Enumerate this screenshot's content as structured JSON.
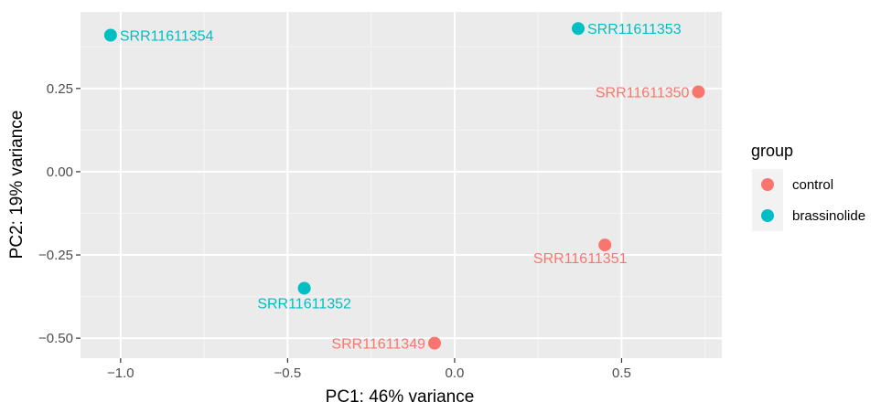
{
  "chart_data": {
    "type": "scatter",
    "title": "",
    "xlabel": "PC1: 46% variance",
    "ylabel": "PC2: 19% variance",
    "xlim": [
      -1.12,
      0.8
    ],
    "ylim": [
      -0.56,
      0.48
    ],
    "x_ticks": [
      -1.0,
      -0.5,
      0.0,
      0.5
    ],
    "x_tick_labels": [
      "−1.0",
      "−0.5",
      "0.0",
      "0.5"
    ],
    "y_ticks": [
      -0.5,
      -0.25,
      0.0,
      0.25
    ],
    "y_tick_labels": [
      "−0.50",
      "−0.25",
      "0.00",
      "0.25"
    ],
    "grid": true,
    "legend": {
      "title": "group",
      "placement": "right",
      "entries": [
        {
          "name": "control",
          "color": "#F8766D"
        },
        {
          "name": "brassinolide",
          "color": "#00BFC4"
        }
      ]
    },
    "points": [
      {
        "label": "SRR11611354",
        "group": "brassinolide",
        "x": -1.03,
        "y": 0.41,
        "label_side": "right"
      },
      {
        "label": "SRR11611353",
        "group": "brassinolide",
        "x": 0.37,
        "y": 0.43,
        "label_side": "right"
      },
      {
        "label": "SRR11611350",
        "group": "control",
        "x": 0.73,
        "y": 0.24,
        "label_side": "left"
      },
      {
        "label": "SRR11611351",
        "group": "control",
        "x": 0.45,
        "y": -0.22,
        "label_side": "below-left"
      },
      {
        "label": "SRR11611352",
        "group": "brassinolide",
        "x": -0.45,
        "y": -0.35,
        "label_side": "below"
      },
      {
        "label": "SRR11611349",
        "group": "control",
        "x": -0.06,
        "y": -0.515,
        "label_side": "left"
      }
    ]
  }
}
